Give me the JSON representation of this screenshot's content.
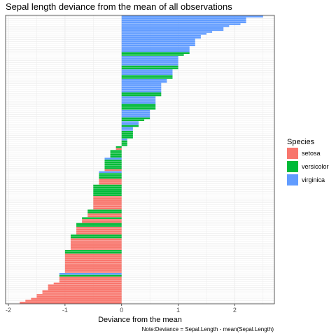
{
  "chart_data": {
    "type": "bar",
    "orientation": "horizontal",
    "title": "Sepal length deviance from the mean of all observations",
    "xlabel": "Deviance from the mean",
    "ylabel": "",
    "caption": "Note:Deviance = Sepal.Length - mean(Sepal.Length)",
    "xlim": [
      -2.05,
      2.7
    ],
    "x_ticks": [
      -2,
      -1,
      0,
      1,
      2
    ],
    "x_tick_labels": [
      "-2",
      "-1",
      "0",
      "1",
      "2"
    ],
    "grid": true,
    "legend": {
      "title": "Species",
      "position": "right",
      "entries": [
        {
          "name": "setosa",
          "color": "#F8766D"
        },
        {
          "name": "versicolor",
          "color": "#00BA38"
        },
        {
          "name": "virginica",
          "color": "#619CFF"
        }
      ]
    },
    "series": [
      {
        "name": "virginica",
        "color": "#619CFF",
        "values": [
          2.5,
          2.2,
          2.2,
          2.2,
          2.1,
          1.9,
          1.8,
          1.8,
          1.6,
          1.5,
          1.4,
          1.4,
          1.3,
          1.3,
          1.3,
          1.3,
          1.2,
          1.2,
          1.2,
          1.0,
          1.0,
          1.0,
          1.0,
          1.0,
          0.9,
          0.9,
          0.9,
          0.8,
          0.8,
          0.7,
          0.7,
          0.7,
          0.7,
          0.7,
          0.6,
          0.6,
          0.6,
          0.6,
          0.5,
          0.5,
          0.5,
          0.5,
          0.3,
          0.3,
          0.2,
          0.2,
          0.1,
          -1.1,
          -0.3,
          -0.4
        ]
      },
      {
        "name": "versicolor",
        "color": "#00BA38",
        "values": [
          1.2,
          1.1,
          1.0,
          1.0,
          0.9,
          0.9,
          0.7,
          0.7,
          0.6,
          0.6,
          0.6,
          0.5,
          0.4,
          0.3,
          0.2,
          0.2,
          0.2,
          0.2,
          0.1,
          0.1,
          0.1,
          -0.1,
          -0.2,
          -0.2,
          -0.2,
          -0.2,
          -0.3,
          -0.3,
          -0.3,
          -0.3,
          -0.3,
          -0.4,
          -0.4,
          -0.4,
          -0.5,
          -0.5,
          -0.5,
          -0.5,
          -0.5,
          -0.5,
          -0.6,
          -0.6,
          -0.7,
          -0.8,
          -0.8,
          -0.9,
          -0.9,
          -1.0,
          -1.0,
          -1.1
        ]
      },
      {
        "name": "setosa",
        "color": "#F8766D",
        "values": [
          -0.1,
          -0.3,
          -0.4,
          -0.4,
          -0.4,
          -0.5,
          -0.5,
          -0.5,
          -0.5,
          -0.5,
          -0.5,
          -0.5,
          -0.6,
          -0.6,
          -0.7,
          -0.7,
          -0.8,
          -0.8,
          -0.8,
          -0.8,
          -0.9,
          -0.9,
          -0.9,
          -0.9,
          -0.9,
          -0.9,
          -1.0,
          -1.0,
          -1.0,
          -1.0,
          -1.0,
          -1.0,
          -1.0,
          -1.0,
          -1.0,
          -1.0,
          -1.1,
          -1.1,
          -1.1,
          -1.2,
          -1.3,
          -1.3,
          -1.3,
          -1.4,
          -1.4,
          -1.5,
          -1.5,
          -1.6,
          -1.7,
          -1.8
        ]
      }
    ]
  }
}
